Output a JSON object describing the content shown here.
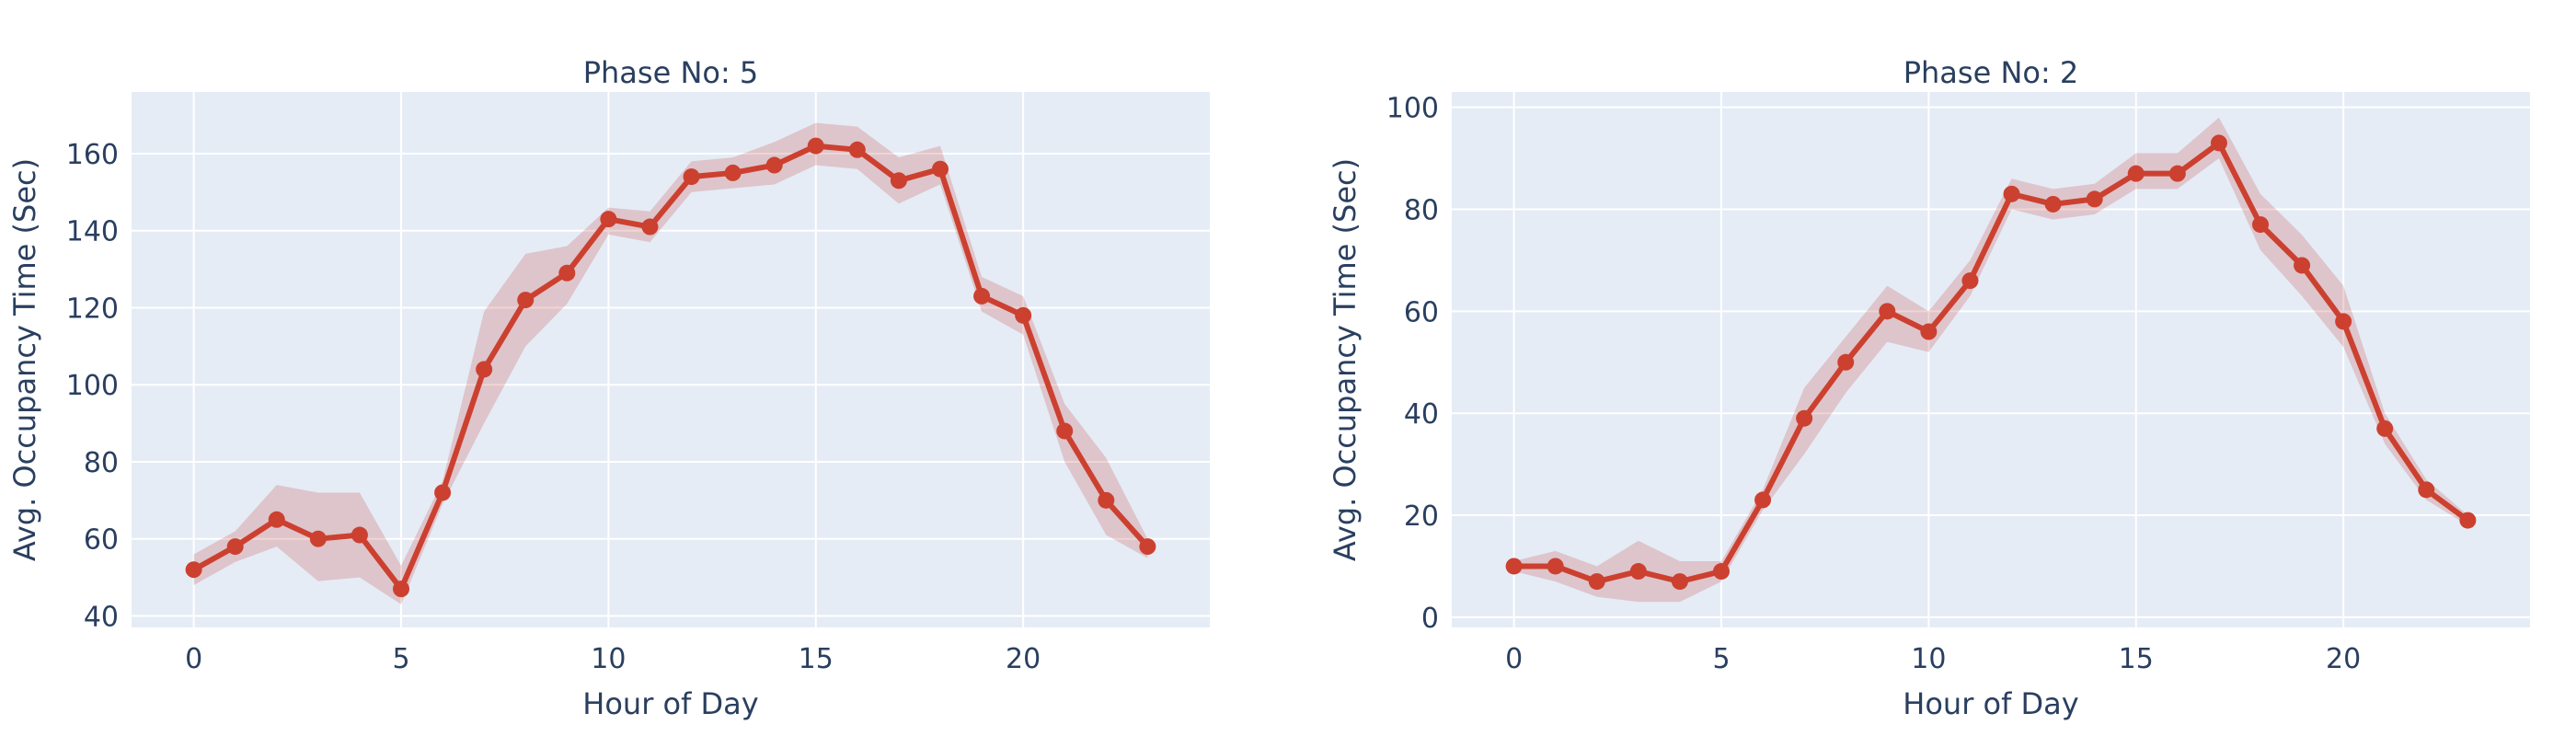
{
  "colors": {
    "series": "#CC4030",
    "band": "rgba(196,60,50,0.22)",
    "plot_bg": "#E5ECF6",
    "text": "#2a3f5f"
  },
  "chart_data": [
    {
      "type": "line",
      "title": "Phase No: 5",
      "xlabel": "Hour of Day",
      "ylabel": "Avg. Occupancy Time (Sec)",
      "xlim": [
        -1.5,
        24.5
      ],
      "ylim": [
        37,
        176
      ],
      "xticks": [
        0,
        5,
        10,
        15,
        20
      ],
      "yticks": [
        40,
        60,
        80,
        100,
        120,
        140,
        160
      ],
      "grid": true,
      "x": [
        0,
        1,
        2,
        3,
        4,
        5,
        6,
        7,
        8,
        9,
        10,
        11,
        12,
        13,
        14,
        15,
        16,
        17,
        18,
        19,
        20,
        21,
        22,
        23
      ],
      "y": [
        52,
        58,
        65,
        60,
        61,
        47,
        72,
        104,
        122,
        129,
        143,
        141,
        154,
        155,
        157,
        162,
        161,
        153,
        156,
        123,
        118,
        88,
        70,
        58
      ],
      "y_upper": [
        56,
        62,
        74,
        72,
        72,
        53,
        75,
        119,
        134,
        136,
        146,
        145,
        158,
        159,
        163,
        168,
        167,
        159,
        162,
        128,
        123,
        95,
        81,
        60
      ],
      "y_lower": [
        48,
        54,
        58,
        49,
        50,
        43,
        69,
        90,
        110,
        121,
        139,
        137,
        150,
        151,
        152,
        157,
        156,
        147,
        152,
        119,
        113,
        80,
        61,
        55
      ]
    },
    {
      "type": "line",
      "title": "Phase No: 2",
      "xlabel": "Hour of Day",
      "ylabel": "Avg. Occupancy Time (Sec)",
      "xlim": [
        -1.5,
        24.5
      ],
      "ylim": [
        -2,
        103
      ],
      "xticks": [
        0,
        5,
        10,
        15,
        20
      ],
      "yticks": [
        0,
        20,
        40,
        60,
        80,
        100
      ],
      "grid": true,
      "x": [
        0,
        1,
        2,
        3,
        4,
        5,
        6,
        7,
        8,
        9,
        10,
        11,
        12,
        13,
        14,
        15,
        16,
        17,
        18,
        19,
        20,
        21,
        22,
        23
      ],
      "y": [
        10,
        10,
        7,
        9,
        7,
        9,
        23,
        39,
        50,
        60,
        56,
        66,
        83,
        81,
        82,
        87,
        87,
        93,
        77,
        69,
        58,
        37,
        25,
        19
      ],
      "y_upper": [
        11,
        13,
        10,
        15,
        11,
        11,
        25,
        45,
        55,
        65,
        60,
        70,
        86,
        84,
        85,
        91,
        91,
        98,
        83,
        75,
        65,
        40,
        27,
        20
      ],
      "y_lower": [
        9,
        7,
        4,
        3,
        3,
        7,
        21,
        32,
        44,
        54,
        52,
        63,
        80,
        78,
        79,
        84,
        84,
        90,
        72,
        63,
        53,
        34,
        23,
        18
      ]
    }
  ]
}
